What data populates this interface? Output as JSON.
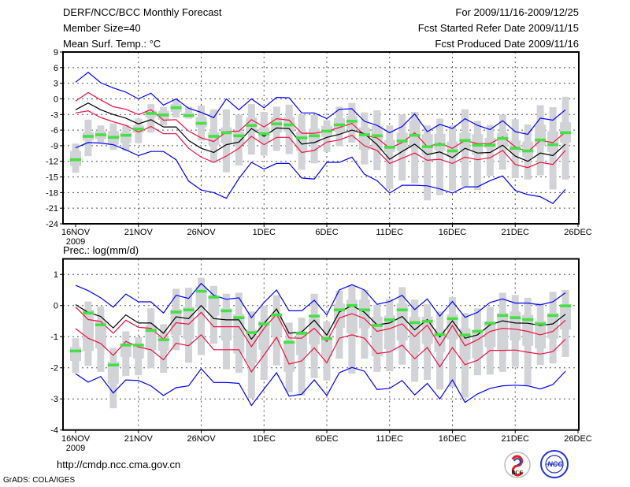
{
  "header": {
    "title": "DERF/NCC/BCC Monthly Forecast",
    "member_size": "Member Size=40",
    "variable_top": "Mean Surf. Temp.: °C",
    "for_period": "For 2009/11/16-2009/12/25",
    "started_refer_date": "Fcst Started Refer Date 2009/11/15",
    "produced_date": "Fcst Produced Date 2009/11/16"
  },
  "footer": {
    "url": "http://cmdp.ncc.cma.gov.cn",
    "grads_credit": "GrADS: COLA/IGES",
    "logo_bcc": "BCC",
    "logo_ncc": "NCC"
  },
  "colors": {
    "envelope": "#0000ff",
    "spread": "#f01040",
    "mean": "#000000",
    "marker": "#44e044",
    "box": "#d2d3d7"
  },
  "chart_data": [
    {
      "type": "line",
      "title": "Mean Surf. Temp.: °C",
      "x_start": "2009-11-16",
      "x_ticks": [
        "16NOV",
        "21NOV",
        "26NOV",
        "1DEC",
        "6DEC",
        "11DEC",
        "16DEC",
        "21DEC",
        "26DEC"
      ],
      "x_year": "2009",
      "ylim": [
        -24,
        9
      ],
      "y_ticks": [
        "9",
        "6",
        "3",
        "0",
        "-3",
        "-6",
        "-9",
        "-12",
        "-15",
        "-18",
        "-21",
        "-24"
      ],
      "grid": true,
      "series": {
        "max_envelope": [
          3.2,
          5.1,
          3.1,
          2.1,
          1.3,
          0,
          1.1,
          -1.2,
          0,
          -1.8,
          -2.6,
          -3.6,
          0,
          -2.1,
          0,
          -1.7,
          0.3,
          0.2,
          -2.7,
          -2.7,
          -3.8,
          -2,
          -1.9,
          -4.3,
          -5.1,
          -6.5,
          -5.3,
          -2.9,
          -6.3,
          -4.9,
          -5.7,
          -3.8,
          -5.1,
          -5.9,
          -4.2,
          -6.3,
          -6.8,
          -3.7,
          -4.1,
          -2.1
        ],
        "upper_spread": [
          -0.4,
          1.2,
          -0.2,
          -1.5,
          -2,
          -3,
          -2.1,
          -4.1,
          -4,
          -6.2,
          -7.5,
          -8.2,
          -6.3,
          -6.2,
          -4,
          -5.4,
          -3.8,
          -4.1,
          -6.6,
          -6.6,
          -6.2,
          -5.5,
          -4.7,
          -7,
          -7.5,
          -9.5,
          -8.4,
          -6.5,
          -9.2,
          -8.5,
          -9.5,
          -8,
          -8.6,
          -8.6,
          -7.3,
          -9.2,
          -10.2,
          -8,
          -8.4,
          -6.4
        ],
        "ensemble_mean": [
          -2.1,
          -0.8,
          -2.1,
          -3,
          -3.7,
          -4.8,
          -4,
          -5.4,
          -5.4,
          -8,
          -9.5,
          -10.3,
          -8.8,
          -8.3,
          -5.7,
          -7.2,
          -5.6,
          -5.7,
          -8.7,
          -8.4,
          -7.4,
          -6.8,
          -6,
          -6.7,
          -8.8,
          -11.6,
          -10.1,
          -8.7,
          -10.7,
          -10.2,
          -11.3,
          -9.5,
          -10.4,
          -10.3,
          -8.9,
          -11,
          -12,
          -10.4,
          -10.9,
          -8.7
        ],
        "lower_spread": [
          -2.7,
          -2.3,
          -3.6,
          -4.4,
          -5.1,
          -6.4,
          -5.3,
          -6.7,
          -6.7,
          -9.5,
          -11.2,
          -12.2,
          -11,
          -9.5,
          -7.2,
          -8.8,
          -7.4,
          -7.4,
          -10.3,
          -9.9,
          -8.3,
          -7.9,
          -7,
          -9,
          -9.9,
          -12.4,
          -11.4,
          -10.4,
          -11.8,
          -11.6,
          -12.4,
          -11.2,
          -11.7,
          -11.3,
          -9.9,
          -12.6,
          -13.2,
          -12.2,
          -12.6,
          -9.9
        ],
        "min_envelope": [
          -9.4,
          -8.4,
          -8.5,
          -8.8,
          -9.8,
          -10.9,
          -10.1,
          -10.1,
          -11.7,
          -15.8,
          -17.5,
          -18,
          -19.1,
          -15.3,
          -12.2,
          -13.5,
          -12.4,
          -12.4,
          -15.2,
          -15.4,
          -12.2,
          -12.2,
          -11.2,
          -14.5,
          -15.7,
          -18.1,
          -16.6,
          -16.6,
          -16.7,
          -17.3,
          -18.1,
          -16.9,
          -16.9,
          -15.7,
          -14.8,
          -17.6,
          -18.4,
          -18.8,
          -20.1,
          -17.4
        ],
        "marker": [
          -11.7,
          -7.2,
          -6.9,
          -7.4,
          -7,
          -5.8,
          -2.8,
          -3.1,
          -1.7,
          -3.2,
          -4.7,
          -7.2,
          -6.5,
          -7.1,
          -5.1,
          -6.7,
          -4.8,
          -5,
          -7.5,
          -7.1,
          -6.2,
          -5,
          -4.3,
          -6.9,
          -7.1,
          -9.3,
          -8.1,
          -7,
          -9.2,
          -8.8,
          -10,
          -8,
          -8.9,
          -8.9,
          -7.6,
          -9.5,
          -10,
          -7.9,
          -8.8,
          -6.5
        ]
      },
      "box_outer": [
        [
          -8.6,
          -14.2
        ],
        [
          -4,
          -11
        ],
        [
          -5.1,
          -8.4
        ],
        [
          -4.7,
          -9.8
        ],
        [
          -5,
          -10
        ],
        [
          -3.8,
          -8.5
        ],
        [
          -1,
          -6.5
        ],
        [
          -1.6,
          -5.1
        ],
        [
          -0.1,
          -3.6
        ],
        [
          -1.5,
          -3.8
        ],
        [
          -1.3,
          -8
        ],
        [
          -2,
          -12.3
        ],
        [
          -2,
          -14.1
        ],
        [
          -3,
          -12.8
        ],
        [
          -1,
          -10.7
        ],
        [
          -2.5,
          -10.9
        ],
        [
          -1.5,
          -10
        ],
        [
          -1.1,
          -10.6
        ],
        [
          -3,
          -13.6
        ],
        [
          -3.1,
          -12.4
        ],
        [
          -4.1,
          -10.2
        ],
        [
          -1.5,
          -9.1
        ],
        [
          -0.8,
          -8.4
        ],
        [
          -2.6,
          -12.6
        ],
        [
          -2.2,
          -13.7
        ],
        [
          -5.1,
          -17.3
        ],
        [
          -3,
          -15.7
        ],
        [
          -2.5,
          -16.2
        ],
        [
          -5.1,
          -19.5
        ],
        [
          -3.8,
          -18.5
        ],
        [
          -5.1,
          -17.6
        ],
        [
          -2,
          -16.8
        ],
        [
          -4.2,
          -17.5
        ],
        [
          -5,
          -14.8
        ],
        [
          -3,
          -13.6
        ],
        [
          -3.9,
          -15.2
        ],
        [
          -4.9,
          -15.5
        ],
        [
          -1.2,
          -14.7
        ],
        [
          -1.6,
          -17.4
        ],
        [
          0.4,
          -15.5
        ]
      ],
      "box_inner": [
        [
          -10,
          -12.9
        ],
        [
          -6.4,
          -8
        ],
        [
          -6.2,
          -7.7
        ],
        [
          -6.2,
          -8.8
        ],
        [
          -6.4,
          -8.5
        ],
        [
          -5.1,
          -6.5
        ],
        [
          -2.2,
          -3.6
        ],
        [
          -2.3,
          -4
        ],
        [
          -1,
          -2.5
        ],
        [
          -2.7,
          -3.6
        ],
        [
          -3.5,
          -5.5
        ],
        [
          -6.4,
          -8.9
        ],
        [
          -5.5,
          -8.5
        ],
        [
          -6.3,
          -8.8
        ],
        [
          -3.6,
          -6.5
        ],
        [
          -5.5,
          -8.3
        ],
        [
          -3.5,
          -6.5
        ],
        [
          -3.5,
          -6.3
        ],
        [
          -6.3,
          -10
        ],
        [
          -5.7,
          -8.5
        ],
        [
          -5.2,
          -7.3
        ],
        [
          -3.7,
          -6.3
        ],
        [
          -3.3,
          -5.8
        ],
        [
          -5.5,
          -9.8
        ],
        [
          -5.2,
          -9.8
        ],
        [
          -7.9,
          -10.2
        ],
        [
          -6.5,
          -10
        ],
        [
          -4.2,
          -9.5
        ],
        [
          -6.8,
          -10.8
        ],
        [
          -6.7,
          -9.9
        ],
        [
          -8.2,
          -11.2
        ],
        [
          -6.5,
          -9.8
        ],
        [
          -6.8,
          -10.8
        ],
        [
          -7.5,
          -9.5
        ],
        [
          -6.5,
          -9.2
        ],
        [
          -8,
          -10.3
        ],
        [
          -8.2,
          -11.2
        ],
        [
          -5,
          -9
        ],
        [
          -6.2,
          -10.2
        ],
        [
          -4.5,
          -8.4
        ]
      ]
    },
    {
      "type": "line",
      "title": "Prec.: log(mm/d)",
      "x_start": "2009-11-16",
      "x_ticks": [
        "16NOV",
        "21NOV",
        "26NOV",
        "1DEC",
        "6DEC",
        "11DEC",
        "16DEC",
        "21DEC",
        "26DEC"
      ],
      "x_year": "2009",
      "ylim": [
        -4,
        1.5
      ],
      "y_ticks": [
        "1",
        "0",
        "-1",
        "-2",
        "-3",
        "-4"
      ],
      "grid": true,
      "series": {
        "max_envelope": [
          0.65,
          0.48,
          0.25,
          -0.05,
          0.37,
          0.12,
          0.12,
          -0.24,
          0.33,
          0.23,
          0.71,
          0.33,
          0.2,
          0.25,
          -0.39,
          0.1,
          0.5,
          -0.17,
          -0.17,
          0.17,
          -0.3,
          0.5,
          0.67,
          0.5,
          0.04,
          0.13,
          0.33,
          -0.13,
          0.21,
          -0.34,
          0.13,
          -0.38,
          -0.22,
          0.1,
          0.21,
          0.08,
          0.08,
          0.02,
          0.12,
          0.41
        ],
        "upper_spread": [
          -0.05,
          -0.45,
          -0.51,
          -0.89,
          -0.47,
          -0.7,
          -0.73,
          -1.08,
          -0.55,
          -0.6,
          -0.22,
          -0.68,
          -0.68,
          -0.68,
          -1.32,
          -0.73,
          -0.28,
          -1.04,
          -1.05,
          -0.73,
          -1.16,
          -0.4,
          -0.26,
          -0.42,
          -0.83,
          -0.74,
          -0.59,
          -1,
          -0.63,
          -1.29,
          -0.64,
          -1.29,
          -1.1,
          -0.83,
          -0.73,
          -0.76,
          -0.83,
          -0.94,
          -0.83,
          -0.47
        ],
        "ensemble_mean": [
          0.03,
          -0.22,
          -0.35,
          -0.72,
          -0.3,
          -0.56,
          -0.56,
          -0.89,
          -0.36,
          -0.42,
          0,
          -0.42,
          -0.46,
          -0.46,
          -1.08,
          -0.57,
          -0.11,
          -0.89,
          -0.85,
          -0.47,
          -0.95,
          -0.21,
          0,
          -0.22,
          -0.62,
          -0.56,
          -0.35,
          -0.78,
          -0.45,
          -1.01,
          -0.49,
          -1.05,
          -0.94,
          -0.62,
          -0.49,
          -0.56,
          -0.57,
          -0.64,
          -0.59,
          -0.28
        ],
        "lower_spread": [
          -0.74,
          -1.05,
          -1.22,
          -1.6,
          -1.15,
          -1.33,
          -1.42,
          -1.74,
          -1.21,
          -1.29,
          -0.94,
          -1.42,
          -1.42,
          -1.42,
          -2.13,
          -1.59,
          -1.02,
          -1.88,
          -1.78,
          -1.36,
          -1.84,
          -1.05,
          -0.94,
          -1.05,
          -1.54,
          -1.49,
          -1.27,
          -1.71,
          -1.35,
          -1.97,
          -1.35,
          -1.9,
          -1.76,
          -1.44,
          -1.44,
          -1.43,
          -1.5,
          -1.56,
          -1.48,
          -1.08
        ],
        "min_envelope": [
          -2.19,
          -2.46,
          -2.28,
          -2.81,
          -2.39,
          -2.41,
          -2.58,
          -2.89,
          -2.64,
          -2.58,
          -2.03,
          -2.47,
          -2.47,
          -2.5,
          -3.21,
          -2.68,
          -2.16,
          -2.91,
          -2.85,
          -2.39,
          -2.89,
          -2.16,
          -1.99,
          -2.11,
          -2.7,
          -2.66,
          -2.41,
          -2.87,
          -2.5,
          -3,
          -2.39,
          -3.11,
          -2.84,
          -2.66,
          -2.58,
          -2.56,
          -2.58,
          -2.68,
          -2.54,
          -2.11
        ],
        "marker": [
          -1.46,
          -0.24,
          -0.62,
          -1.91,
          -1.27,
          -1.27,
          -0.8,
          -1.1,
          -0.21,
          -0.14,
          0.46,
          0.27,
          -0.17,
          -0.39,
          -0.87,
          -0.59,
          -0.3,
          -1.18,
          -0.89,
          -0.34,
          -1.06,
          -0.14,
          0,
          -0.14,
          -0.64,
          -0.46,
          -0.14,
          -0.55,
          -0.51,
          -0.93,
          -0.42,
          -0.95,
          -0.83,
          -0.57,
          -0.32,
          -0.39,
          -0.45,
          -0.59,
          -0.32,
          -0.01
        ]
      },
      "box_outer": [
        [
          -1.05,
          -2.16
        ],
        [
          0.13,
          -1.94
        ],
        [
          -0.03,
          -2.13
        ],
        [
          -1.36,
          -3.3
        ],
        [
          -0.83,
          -2.26
        ],
        [
          -1.02,
          -2.24
        ],
        [
          -0.09,
          -2.01
        ],
        [
          -0.6,
          -2.16
        ],
        [
          0.54,
          -1.43
        ],
        [
          0.57,
          -1.84
        ],
        [
          0.89,
          -1.59
        ],
        [
          0.63,
          -1.23
        ],
        [
          0.38,
          -2.05
        ],
        [
          0.41,
          -2.16
        ],
        [
          -0.19,
          -2.98
        ],
        [
          0,
          -2.39
        ],
        [
          0.33,
          -1.92
        ],
        [
          -0.55,
          -2.79
        ],
        [
          -0.39,
          -2.89
        ],
        [
          0.38,
          -2.33
        ],
        [
          -0.51,
          -2.41
        ],
        [
          0.48,
          -1.71
        ],
        [
          0.65,
          -2.19
        ],
        [
          0.5,
          -1.71
        ],
        [
          0.03,
          -2.13
        ],
        [
          0.2,
          -2.11
        ],
        [
          0.59,
          -1.9
        ],
        [
          0.19,
          -2.45
        ],
        [
          0.04,
          -2.39
        ],
        [
          -0.19,
          -2.7
        ],
        [
          0.27,
          -2.62
        ],
        [
          -0.24,
          -2.96
        ],
        [
          -0.09,
          -2.24
        ],
        [
          -0.04,
          -2.22
        ],
        [
          0.41,
          -2.13
        ],
        [
          0.34,
          -1.97
        ],
        [
          0.25,
          -2.56
        ],
        [
          0.08,
          -1.91
        ],
        [
          0.44,
          -1.86
        ],
        [
          0.5,
          -1.65
        ]
      ],
      "box_inner": [
        [
          -1.33,
          -1.78
        ],
        [
          -0.14,
          -1.46
        ],
        [
          -0.49,
          -1.38
        ],
        [
          -1.8,
          -2.51
        ],
        [
          -1.23,
          -1.65
        ],
        [
          -1.25,
          -1.7
        ],
        [
          -0.63,
          -1.43
        ],
        [
          -1,
          -1.46
        ],
        [
          -0.11,
          -0.95
        ],
        [
          -0.03,
          -1.08
        ],
        [
          0.61,
          -0.07
        ],
        [
          0.31,
          -0.32
        ],
        [
          -0.09,
          -1.12
        ],
        [
          -0.28,
          -1.54
        ],
        [
          -0.76,
          -1.84
        ],
        [
          -0.49,
          -1.42
        ],
        [
          -0.28,
          -1
        ],
        [
          -1.12,
          -2.13
        ],
        [
          -0.84,
          -1.59
        ],
        [
          -0.41,
          -1.25
        ],
        [
          -1,
          -1.63
        ],
        [
          0.06,
          -0.72
        ],
        [
          0.19,
          -0.89
        ],
        [
          0.19,
          -0.73
        ],
        [
          -0.36,
          -1.63
        ],
        [
          -0.32,
          -1.4
        ],
        [
          0.06,
          -1.12
        ],
        [
          -0.36,
          -1.5
        ],
        [
          -0.36,
          -1.23
        ],
        [
          -0.76,
          -1.49
        ],
        [
          -0.28,
          -1.08
        ],
        [
          -0.73,
          -1.74
        ],
        [
          -0.78,
          -1.69
        ],
        [
          -0.51,
          -1.33
        ],
        [
          -0.24,
          -1.42
        ],
        [
          -0.19,
          -1.12
        ],
        [
          -0.3,
          -1.29
        ],
        [
          -0.49,
          -1.38
        ],
        [
          -0.24,
          -1.06
        ],
        [
          0,
          -0.77
        ]
      ]
    }
  ]
}
